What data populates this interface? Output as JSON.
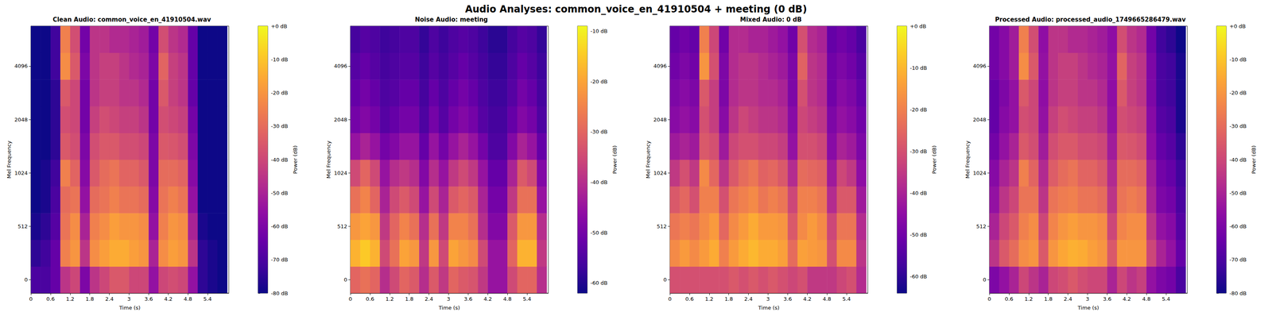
{
  "title": "Audio Analyses: common_voice_en_41910504 + meeting (0 dB)",
  "chart_data": [
    {
      "type": "heatmap",
      "title": "Clean Audio: common_voice_en_41910504.wav",
      "xlabel": "Time (s)",
      "ylabel": "Mel Frequency",
      "time_edges": [
        0,
        0.3,
        0.6,
        0.9,
        1.2,
        1.5,
        1.8,
        2.1,
        2.4,
        2.7,
        3.0,
        3.3,
        3.6,
        3.9,
        4.2,
        4.5,
        4.8,
        5.1,
        5.4,
        5.7,
        6.0
      ],
      "xlim": [
        0,
        6.05
      ],
      "xticks": [
        0,
        0.6,
        1.2,
        1.8,
        2.4,
        3,
        3.6,
        4.2,
        4.8,
        5.4
      ],
      "categories": [
        0,
        null,
        512,
        null,
        1024,
        null,
        2048,
        null,
        4096,
        null
      ],
      "cells": [
        [
          -70,
          -70,
          -65,
          -45,
          -40,
          -60,
          -45,
          -40,
          -35,
          -35,
          -40,
          -40,
          -55,
          -40,
          -38,
          -40,
          -55,
          -75,
          -78,
          -80
        ],
        [
          -75,
          -72,
          -65,
          -25,
          -20,
          -45,
          -22,
          -18,
          -15,
          -15,
          -18,
          -20,
          -50,
          -22,
          -18,
          -20,
          -45,
          -75,
          -78,
          -80
        ],
        [
          -78,
          -75,
          -68,
          -28,
          -22,
          -50,
          -25,
          -22,
          -18,
          -20,
          -20,
          -22,
          -55,
          -25,
          -20,
          -22,
          -50,
          -78,
          -80,
          -80
        ],
        [
          -80,
          -78,
          -70,
          -30,
          -28,
          -55,
          -30,
          -28,
          -25,
          -28,
          -28,
          -30,
          -58,
          -28,
          -25,
          -28,
          -55,
          -80,
          -80,
          -80
        ],
        [
          -80,
          -78,
          -72,
          -25,
          -32,
          -58,
          -35,
          -30,
          -28,
          -32,
          -32,
          -35,
          -60,
          -30,
          -30,
          -32,
          -58,
          -80,
          -80,
          -80
        ],
        [
          -80,
          -80,
          -75,
          -35,
          -38,
          -60,
          -38,
          -35,
          -35,
          -38,
          -38,
          -40,
          -60,
          -35,
          -36,
          -38,
          -60,
          -80,
          -80,
          -80
        ],
        [
          -80,
          -80,
          -75,
          -38,
          -40,
          -62,
          -42,
          -38,
          -40,
          -42,
          -42,
          -45,
          -62,
          -38,
          -40,
          -42,
          -62,
          -80,
          -80,
          -80
        ],
        [
          -80,
          -80,
          -75,
          -35,
          -40,
          -62,
          -45,
          -42,
          -42,
          -45,
          -45,
          -48,
          -62,
          -35,
          -42,
          -45,
          -65,
          -80,
          -80,
          -80
        ],
        [
          -80,
          -80,
          -72,
          -22,
          -35,
          -60,
          -45,
          -42,
          -42,
          -45,
          -48,
          -50,
          -60,
          -32,
          -42,
          -45,
          -65,
          -80,
          -80,
          -80
        ],
        [
          -80,
          -80,
          -72,
          -25,
          -38,
          -62,
          -45,
          -45,
          -48,
          -48,
          -50,
          -52,
          -62,
          -38,
          -45,
          -48,
          -65,
          -80,
          -80,
          -80
        ]
      ],
      "colorbar": {
        "label": "Power (dB)",
        "range": [
          -80,
          0
        ],
        "ticks": [
          {
            "value": 0,
            "label": "+0 dB"
          },
          {
            "value": -10,
            "label": "-10 dB"
          },
          {
            "value": -20,
            "label": "-20 dB"
          },
          {
            "value": -30,
            "label": "-30 dB"
          },
          {
            "value": -40,
            "label": "-40 dB"
          },
          {
            "value": -50,
            "label": "-50 dB"
          },
          {
            "value": -60,
            "label": "-60 dB"
          },
          {
            "value": -70,
            "label": "-70 dB"
          },
          {
            "value": -80,
            "label": "-80 dB"
          }
        ]
      }
    },
    {
      "type": "heatmap",
      "title": "Noise Audio: meeting",
      "xlabel": "Time (s)",
      "ylabel": "Mel Frequency",
      "time_edges": [
        0,
        0.3,
        0.6,
        0.9,
        1.2,
        1.5,
        1.8,
        2.1,
        2.4,
        2.7,
        3.0,
        3.3,
        3.6,
        3.9,
        4.2,
        4.5,
        4.8,
        5.1,
        5.4,
        5.7,
        6.0
      ],
      "xlim": [
        0,
        6.05
      ],
      "xticks": [
        0,
        0.6,
        1.2,
        1.8,
        2.4,
        3,
        3.6,
        4.2,
        4.8,
        5.4
      ],
      "categories": [
        0,
        null,
        512,
        null,
        1024,
        null,
        2048,
        null,
        4096,
        null
      ],
      "cells": [
        [
          -30,
          -28,
          -30,
          -40,
          -35,
          -30,
          -32,
          -40,
          -32,
          -38,
          -30,
          -32,
          -33,
          -38,
          -45,
          -45,
          -35,
          -30,
          -30,
          -40
        ],
        [
          -18,
          -15,
          -18,
          -35,
          -28,
          -20,
          -22,
          -38,
          -22,
          -35,
          -20,
          -22,
          -24,
          -35,
          -45,
          -45,
          -30,
          -18,
          -18,
          -38
        ],
        [
          -22,
          -20,
          -22,
          -38,
          -30,
          -25,
          -28,
          -40,
          -28,
          -38,
          -25,
          -25,
          -28,
          -40,
          -48,
          -48,
          -32,
          -22,
          -22,
          -40
        ],
        [
          -28,
          -25,
          -30,
          -42,
          -35,
          -32,
          -35,
          -45,
          -35,
          -42,
          -32,
          -30,
          -32,
          -42,
          -50,
          -50,
          -38,
          -28,
          -28,
          -45
        ],
        [
          -35,
          -30,
          -35,
          -45,
          -40,
          -38,
          -40,
          -48,
          -40,
          -45,
          -38,
          -35,
          -38,
          -45,
          -52,
          -52,
          -42,
          -32,
          -35,
          -48
        ],
        [
          -45,
          -42,
          -45,
          -50,
          -48,
          -45,
          -45,
          -52,
          -45,
          -50,
          -45,
          -42,
          -45,
          -50,
          -55,
          -55,
          -48,
          -42,
          -45,
          -52
        ],
        [
          -50,
          -48,
          -50,
          -54,
          -52,
          -50,
          -50,
          -55,
          -50,
          -54,
          -50,
          -48,
          -50,
          -54,
          -56,
          -56,
          -52,
          -48,
          -50,
          -55
        ],
        [
          -52,
          -50,
          -52,
          -55,
          -54,
          -52,
          -52,
          -56,
          -52,
          -55,
          -52,
          -50,
          -52,
          -55,
          -57,
          -57,
          -54,
          -50,
          -52,
          -56
        ],
        [
          -54,
          -52,
          -54,
          -56,
          -55,
          -54,
          -54,
          -57,
          -54,
          -56,
          -54,
          -52,
          -54,
          -56,
          -58,
          -58,
          -55,
          -52,
          -54,
          -57
        ],
        [
          -56,
          -54,
          -55,
          -57,
          -56,
          -55,
          -55,
          -58,
          -55,
          -57,
          -55,
          -54,
          -55,
          -57,
          -59,
          -59,
          -56,
          -54,
          -55,
          -58
        ]
      ],
      "colorbar": {
        "label": "Power (dB)",
        "range": [
          -62,
          -9
        ],
        "ticks": [
          {
            "value": -10,
            "label": "-10 dB"
          },
          {
            "value": -20,
            "label": "-20 dB"
          },
          {
            "value": -30,
            "label": "-30 dB"
          },
          {
            "value": -40,
            "label": "-40 dB"
          },
          {
            "value": -50,
            "label": "-50 dB"
          },
          {
            "value": -60,
            "label": "-60 dB"
          }
        ]
      }
    },
    {
      "type": "heatmap",
      "title": "Mixed Audio: 0 dB",
      "xlabel": "Time (s)",
      "ylabel": "Mel Frequency",
      "time_edges": [
        0,
        0.3,
        0.6,
        0.9,
        1.2,
        1.5,
        1.8,
        2.1,
        2.4,
        2.7,
        3.0,
        3.3,
        3.6,
        3.9,
        4.2,
        4.5,
        4.8,
        5.1,
        5.4,
        5.7,
        6.0
      ],
      "xlim": [
        0,
        6.05
      ],
      "xticks": [
        0,
        0.6,
        1.2,
        1.8,
        2.4,
        3,
        3.6,
        4.2,
        4.8,
        5.4
      ],
      "categories": [
        0,
        null,
        512,
        null,
        1024,
        null,
        2048,
        null,
        4096,
        null
      ],
      "cells": [
        [
          -30,
          -30,
          -30,
          -30,
          -30,
          -30,
          -28,
          -30,
          -28,
          -30,
          -28,
          -30,
          -32,
          -30,
          -35,
          -35,
          -35,
          -32,
          -30,
          -38
        ],
        [
          -18,
          -15,
          -18,
          -15,
          -12,
          -20,
          -15,
          -12,
          -10,
          -12,
          -12,
          -14,
          -24,
          -14,
          -15,
          -16,
          -30,
          -18,
          -18,
          -36
        ],
        [
          -22,
          -20,
          -22,
          -18,
          -15,
          -25,
          -18,
          -15,
          -12,
          -15,
          -15,
          -16,
          -28,
          -18,
          -15,
          -18,
          -32,
          -22,
          -22,
          -38
        ],
        [
          -28,
          -25,
          -30,
          -20,
          -20,
          -30,
          -22,
          -20,
          -18,
          -22,
          -20,
          -22,
          -32,
          -20,
          -20,
          -22,
          -38,
          -28,
          -28,
          -42
        ],
        [
          -35,
          -30,
          -35,
          -18,
          -25,
          -36,
          -28,
          -24,
          -22,
          -26,
          -25,
          -28,
          -38,
          -24,
          -25,
          -26,
          -42,
          -32,
          -35,
          -45
        ],
        [
          -42,
          -40,
          -42,
          -28,
          -30,
          -42,
          -32,
          -30,
          -30,
          -32,
          -32,
          -34,
          -44,
          -30,
          -30,
          -32,
          -46,
          -40,
          -42,
          -48
        ],
        [
          -46,
          -44,
          -46,
          -30,
          -34,
          -46,
          -36,
          -32,
          -34,
          -36,
          -36,
          -38,
          -46,
          -32,
          -34,
          -36,
          -48,
          -44,
          -46,
          -50
        ],
        [
          -48,
          -46,
          -48,
          -28,
          -34,
          -48,
          -38,
          -36,
          -36,
          -38,
          -38,
          -40,
          -48,
          -30,
          -36,
          -38,
          -50,
          -46,
          -48,
          -52
        ],
        [
          -50,
          -48,
          -50,
          -16,
          -30,
          -48,
          -38,
          -36,
          -36,
          -38,
          -40,
          -42,
          -48,
          -26,
          -36,
          -38,
          -50,
          -48,
          -50,
          -54
        ],
        [
          -52,
          -50,
          -52,
          -20,
          -32,
          -50,
          -38,
          -38,
          -40,
          -40,
          -42,
          -44,
          -50,
          -30,
          -38,
          -40,
          -52,
          -50,
          -52,
          -56
        ]
      ],
      "colorbar": {
        "label": "Power (dB)",
        "range": [
          -64,
          0
        ],
        "ticks": [
          {
            "value": 0,
            "label": "+0 dB"
          },
          {
            "value": -10,
            "label": "-10 dB"
          },
          {
            "value": -20,
            "label": "-20 dB"
          },
          {
            "value": -30,
            "label": "-30 dB"
          },
          {
            "value": -40,
            "label": "-40 dB"
          },
          {
            "value": -50,
            "label": "-50 dB"
          },
          {
            "value": -60,
            "label": "-60 dB"
          }
        ]
      }
    },
    {
      "type": "heatmap",
      "title": "Processed Audio: processed_audio_1749665286479.wav",
      "xlabel": "Time (s)",
      "ylabel": "Mel Frequency",
      "time_edges": [
        0,
        0.3,
        0.6,
        0.9,
        1.2,
        1.5,
        1.8,
        2.1,
        2.4,
        2.7,
        3.0,
        3.3,
        3.6,
        3.9,
        4.2,
        4.5,
        4.8,
        5.1,
        5.4,
        5.7,
        6.0
      ],
      "xlim": [
        0,
        6.05
      ],
      "xticks": [
        0,
        0.6,
        1.2,
        1.8,
        2.4,
        3,
        3.6,
        4.2,
        4.8,
        5.4
      ],
      "categories": [
        0,
        null,
        512,
        null,
        1024,
        null,
        2048,
        null,
        4096,
        null
      ],
      "cells": [
        [
          -60,
          -55,
          -50,
          -40,
          -45,
          -50,
          -40,
          -38,
          -35,
          -38,
          -40,
          -40,
          -50,
          -40,
          -45,
          -42,
          -55,
          -60,
          -62,
          -70
        ],
        [
          -45,
          -35,
          -30,
          -22,
          -20,
          -35,
          -20,
          -16,
          -14,
          -15,
          -18,
          -20,
          -35,
          -20,
          -20,
          -20,
          -40,
          -50,
          -55,
          -65
        ],
        [
          -50,
          -40,
          -35,
          -25,
          -22,
          -40,
          -24,
          -20,
          -18,
          -20,
          -20,
          -22,
          -40,
          -24,
          -22,
          -22,
          -45,
          -55,
          -58,
          -68
        ],
        [
          -55,
          -45,
          -40,
          -28,
          -28,
          -45,
          -28,
          -26,
          -25,
          -28,
          -28,
          -30,
          -45,
          -28,
          -26,
          -28,
          -50,
          -60,
          -62,
          -70
        ],
        [
          -58,
          -50,
          -45,
          -25,
          -32,
          -48,
          -34,
          -30,
          -28,
          -32,
          -32,
          -35,
          -48,
          -30,
          -30,
          -32,
          -52,
          -62,
          -65,
          -72
        ],
        [
          -62,
          -55,
          -50,
          -35,
          -38,
          -52,
          -38,
          -35,
          -35,
          -38,
          -38,
          -40,
          -52,
          -35,
          -36,
          -38,
          -56,
          -65,
          -68,
          -75
        ],
        [
          -65,
          -58,
          -55,
          -38,
          -40,
          -55,
          -42,
          -38,
          -40,
          -42,
          -42,
          -45,
          -55,
          -38,
          -40,
          -42,
          -58,
          -68,
          -70,
          -78
        ],
        [
          -65,
          -60,
          -55,
          -35,
          -40,
          -56,
          -45,
          -42,
          -42,
          -45,
          -45,
          -48,
          -56,
          -35,
          -42,
          -45,
          -60,
          -70,
          -72,
          -78
        ],
        [
          -62,
          -58,
          -52,
          -22,
          -35,
          -55,
          -45,
          -42,
          -42,
          -45,
          -48,
          -50,
          -55,
          -32,
          -42,
          -45,
          -60,
          -70,
          -72,
          -78
        ],
        [
          -62,
          -58,
          -52,
          -25,
          -38,
          -56,
          -45,
          -45,
          -48,
          -48,
          -50,
          -52,
          -56,
          -38,
          -45,
          -48,
          -62,
          -72,
          -75,
          -80
        ]
      ],
      "colorbar": {
        "label": "Power (dB)",
        "range": [
          -80,
          0
        ],
        "ticks": [
          {
            "value": 0,
            "label": "+0 dB"
          },
          {
            "value": -10,
            "label": "-10 dB"
          },
          {
            "value": -20,
            "label": "-20 dB"
          },
          {
            "value": -30,
            "label": "-30 dB"
          },
          {
            "value": -40,
            "label": "-40 dB"
          },
          {
            "value": -50,
            "label": "-50 dB"
          },
          {
            "value": -60,
            "label": "-60 dB"
          },
          {
            "value": -70,
            "label": "-70 dB"
          },
          {
            "value": -80,
            "label": "-80 dB"
          }
        ]
      }
    }
  ]
}
